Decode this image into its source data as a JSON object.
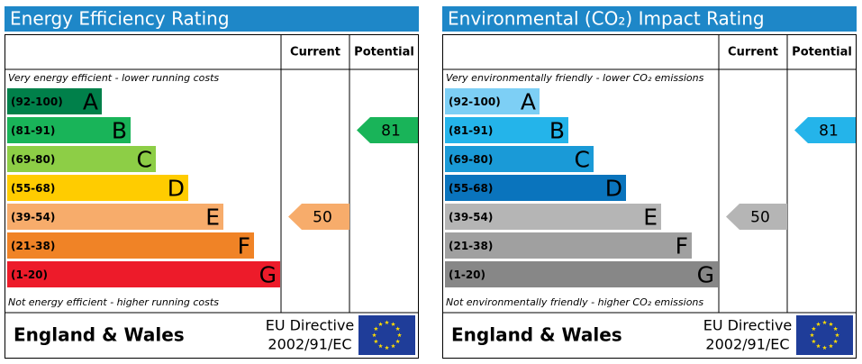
{
  "panels": [
    {
      "title": "Energy Efficiency Rating",
      "headers": [
        "Current",
        "Potential"
      ],
      "top_note": "Very energy efficient - lower running costs",
      "bottom_note": "Not energy efficient - higher running costs",
      "bands": [
        {
          "range": "(92-100)",
          "letter": "A",
          "color": "#00804a"
        },
        {
          "range": "(81-91)",
          "letter": "B",
          "color": "#19b459"
        },
        {
          "range": "(69-80)",
          "letter": "C",
          "color": "#8dce46"
        },
        {
          "range": "(55-68)",
          "letter": "D",
          "color": "#ffcc00"
        },
        {
          "range": "(39-54)",
          "letter": "E",
          "color": "#f7ac6b"
        },
        {
          "range": "(21-38)",
          "letter": "F",
          "color": "#f08326"
        },
        {
          "range": "(1-20)",
          "letter": "G",
          "color": "#ed1b2a"
        }
      ],
      "current": 50,
      "potential": 81,
      "footer": {
        "region": "England & Wales",
        "directive": "EU Directive",
        "number": "2002/91/EC"
      }
    },
    {
      "title": "Environmental (CO₂) Impact Rating",
      "headers": [
        "Current",
        "Potential"
      ],
      "top_note": "Very environmentally friendly - lower CO₂ emissions",
      "bottom_note": "Not environmentally friendly - higher CO₂ emissions",
      "bands": [
        {
          "range": "(92-100)",
          "letter": "A",
          "color": "#7dcff5"
        },
        {
          "range": "(81-91)",
          "letter": "B",
          "color": "#24b4ea"
        },
        {
          "range": "(69-80)",
          "letter": "C",
          "color": "#1a9ad7"
        },
        {
          "range": "(55-68)",
          "letter": "D",
          "color": "#0a74bd"
        },
        {
          "range": "(39-54)",
          "letter": "E",
          "color": "#b5b5b5"
        },
        {
          "range": "(21-38)",
          "letter": "F",
          "color": "#a0a0a0"
        },
        {
          "range": "(1-20)",
          "letter": "G",
          "color": "#878787"
        }
      ],
      "current": 50,
      "potential": 81,
      "footer": {
        "region": "England & Wales",
        "directive": "EU Directive",
        "number": "2002/91/EC"
      }
    }
  ]
}
